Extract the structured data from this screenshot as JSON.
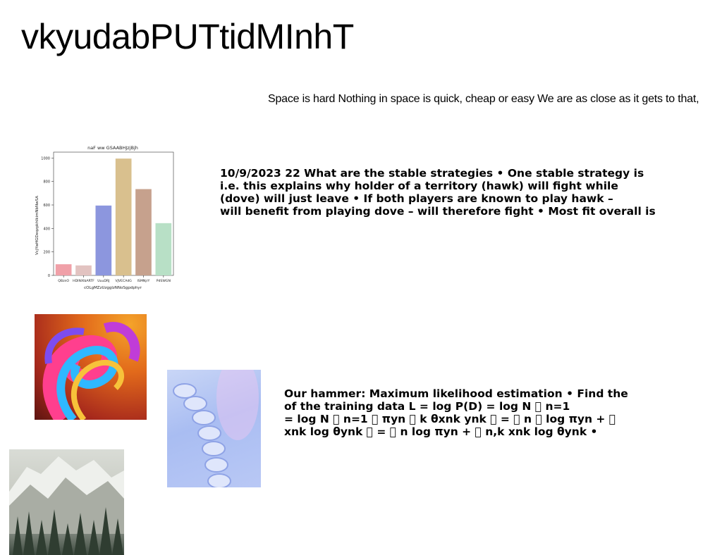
{
  "page": {
    "title": "vkyudabPUTtidMInhT",
    "tagline": "Space is hard Nothing in space is quick, cheap or easy We are as close as it gets to that,"
  },
  "paragraphs": {
    "p1": [
      "10/9/2023 22 What are the stable strategies • One stable strategy is",
      "i.e. this explains why holder of a territory (hawk) will fight while",
      "(dove) will just leave • If both players are known to play hawk –",
      "will benefit from playing dove – will therefore fight • Most fit overall is"
    ],
    "p2": [
      "Our hammer: Maximum likelihood estimation • Find the",
      "of the training data L = log P(D) = log N ￿ n=1",
      "= log N ￿ n=1 ￿ πyn ￿ k θxnk ynk ￿ = ￿ n ￿ log πyn + ￿",
      "xnk log θynk ￿ = ￿ n log πyn + ￿ n,k xnk log θynk •"
    ]
  },
  "images": {
    "swirl": "abstract-swirl-image",
    "spiral": "blue-spiral-image",
    "mountain": "mountain-forest-image"
  },
  "chart_data": {
    "type": "bar",
    "title": "naF ww GSAABHJzjBjh",
    "xlabel": "cOLgMZzUzgglzNNoSgpdphyr",
    "ylabel": "VcjYwHGDeqzpkhIkimNbNwSA",
    "categories": [
      "QBznO",
      "HDINXIbARTF",
      "UuuDRJ",
      "VJVECAdG",
      "ISMNjrY",
      "PdSWGN"
    ],
    "values": [
      95,
      85,
      595,
      995,
      735,
      445
    ],
    "colors": [
      "#f0a0a8",
      "#e2c3c1",
      "#8c96de",
      "#d9c08e",
      "#c6a18d",
      "#b8e0c6"
    ],
    "yticks": [
      0,
      200,
      400,
      600,
      800,
      1000
    ],
    "ylim": [
      0,
      1050
    ],
    "grid": false
  }
}
